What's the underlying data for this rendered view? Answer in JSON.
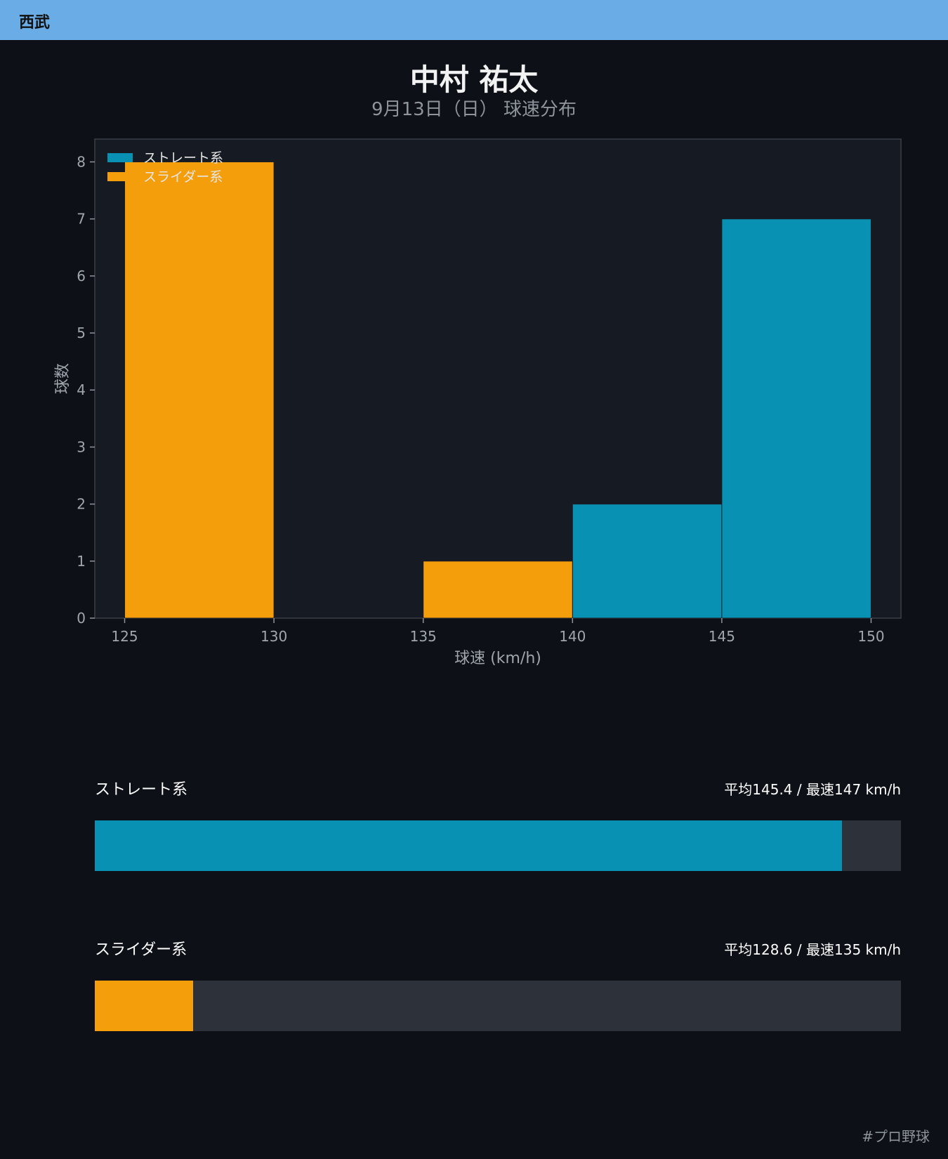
{
  "header": {
    "team": "西武"
  },
  "title": "中村 祐太",
  "subtitle": "9月13日（日） 球速分布",
  "chart_data": {
    "type": "bar",
    "title": "",
    "xlabel": "球速 (km/h)",
    "ylabel": "球数",
    "xlim": [
      124,
      151
    ],
    "ylim": [
      0,
      8.4
    ],
    "xticks": [
      125,
      130,
      135,
      140,
      145,
      150
    ],
    "yticks": [
      0,
      1,
      2,
      3,
      4,
      5,
      6,
      7,
      8
    ],
    "legend_position": "top-left",
    "grid": false,
    "series": [
      {
        "name": "ストレート系",
        "color": "#0891b2",
        "bins": [
          {
            "x0": 140,
            "x1": 145,
            "count": 2
          },
          {
            "x0": 145,
            "x1": 150,
            "count": 7
          }
        ]
      },
      {
        "name": "スライダー系",
        "color": "#f59e0b",
        "bins": [
          {
            "x0": 125,
            "x1": 130,
            "count": 8
          },
          {
            "x0": 135,
            "x1": 140,
            "count": 1
          }
        ]
      }
    ]
  },
  "summary": [
    {
      "label": "ストレート系",
      "stats": "平均145.4 / 最速147 km/h",
      "color": "#0891b2",
      "fraction": 0.927
    },
    {
      "label": "スライダー系",
      "stats": "平均128.6 / 最速135 km/h",
      "color": "#f59e0b",
      "fraction": 0.122
    }
  ],
  "footer": {
    "hashtag": "#プロ野球"
  }
}
